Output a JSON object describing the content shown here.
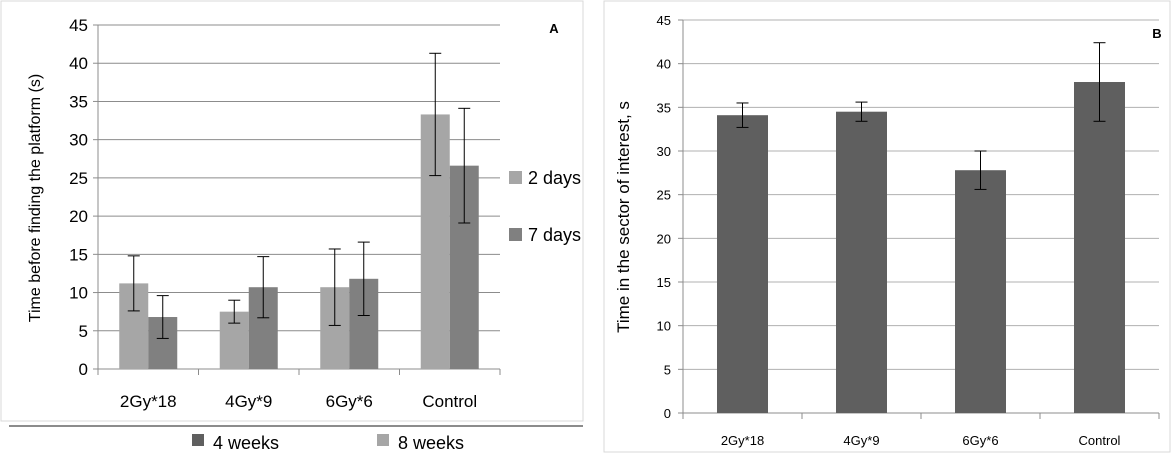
{
  "chart_data": [
    {
      "id": "A",
      "type": "bar",
      "panel_label": "A",
      "title": "",
      "xlabel": "",
      "ylabel": "Time before finding the platform (s)",
      "ylim": [
        0,
        45
      ],
      "yticks": [
        0,
        5,
        10,
        15,
        20,
        25,
        30,
        35,
        40,
        45
      ],
      "grid": true,
      "categories": [
        "2Gy*18",
        "4Gy*9",
        "6Gy*6",
        "Control"
      ],
      "series": [
        {
          "name": "2 days",
          "color": "#a6a6a6",
          "values": [
            11.2,
            7.5,
            10.7,
            33.3
          ],
          "errors": [
            3.6,
            1.5,
            5.0,
            8.0
          ]
        },
        {
          "name": "7 days",
          "color": "#808080",
          "values": [
            6.8,
            10.7,
            11.8,
            26.6
          ],
          "errors": [
            2.8,
            4.0,
            4.8,
            7.5
          ]
        }
      ],
      "legend": {
        "placement": "right",
        "entries": [
          "2 days",
          "7 days"
        ]
      },
      "bottom_legend": {
        "entries": [
          {
            "label": "4 weeks",
            "color": "#5f5f5f"
          },
          {
            "label": "8 weeks",
            "color": "#a6a6a6"
          }
        ]
      }
    },
    {
      "id": "B",
      "type": "bar",
      "panel_label": "B",
      "title": "",
      "xlabel": "",
      "ylabel": "Time in the sector of interest, s",
      "ylim": [
        0,
        45
      ],
      "yticks": [
        0,
        5,
        10,
        15,
        20,
        25,
        30,
        35,
        40,
        45
      ],
      "grid": true,
      "categories": [
        "2Gy*18",
        "4Gy*9",
        "6Gy*6",
        "Control"
      ],
      "series": [
        {
          "color": "#5f5f5f",
          "values": [
            34.1,
            34.5,
            27.8,
            37.9
          ],
          "errors": [
            1.4,
            1.1,
            2.2,
            4.5
          ]
        }
      ]
    }
  ]
}
